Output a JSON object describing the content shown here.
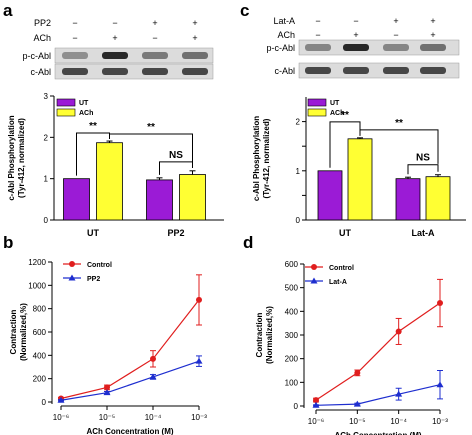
{
  "panel_labels": [
    "a",
    "b",
    "c",
    "d"
  ],
  "blots": [
    {
      "treatments": [
        {
          "label": "PP2",
          "signs": [
            "−",
            "−",
            "+",
            "+"
          ]
        },
        {
          "label": "ACh",
          "signs": [
            "−",
            "+",
            "−",
            "+"
          ]
        }
      ],
      "bands": [
        {
          "label": "p-c-Abl",
          "intensity": [
            0.45,
            0.95,
            0.55,
            0.6
          ]
        },
        {
          "label": "c-Abl",
          "intensity": [
            0.8,
            0.8,
            0.8,
            0.8
          ]
        }
      ]
    },
    {
      "treatments": [
        {
          "label": "Lat-A",
          "signs": [
            "−",
            "−",
            "+",
            "+"
          ]
        },
        {
          "label": "ACh",
          "signs": [
            "−",
            "+",
            "−",
            "+"
          ]
        }
      ],
      "bands": [
        {
          "label": "p-c-Abl",
          "intensity": [
            0.5,
            0.95,
            0.5,
            0.6
          ]
        },
        {
          "label": "c-Abl",
          "intensity": [
            0.8,
            0.8,
            0.8,
            0.8
          ]
        }
      ]
    }
  ],
  "colors": {
    "ut": "#9B1BD6",
    "ach": "#FFFF33",
    "control": "#E01E1E",
    "treated": "#1E2ECF"
  },
  "chart_data": [
    {
      "type": "bar",
      "ylabel": "c-Abl Phosphorylation\n(Tyr-412, normalized)",
      "ylim": [
        0,
        3
      ],
      "yticks": [
        0,
        1,
        2,
        3
      ],
      "categories": [
        "UT",
        "PP2"
      ],
      "series": [
        {
          "name": "UT",
          "values": [
            1.0,
            0.97
          ],
          "errors": [
            0,
            0.05
          ]
        },
        {
          "name": "ACh",
          "values": [
            1.87,
            1.1
          ],
          "errors": [
            0.04,
            0.09
          ]
        }
      ],
      "annotations": [
        {
          "text": "**",
          "type": "within",
          "group": 0
        },
        {
          "text": "**",
          "type": "between"
        },
        {
          "text": "NS",
          "type": "within",
          "group": 1
        }
      ],
      "legend": "top-left"
    },
    {
      "type": "line",
      "ylabel": "Contraction\n(Normalized,%)",
      "xlabel": "ACh Concentration (M)",
      "xscale": "log",
      "x": [
        1e-06,
        1e-05,
        0.0001,
        0.001
      ],
      "xtick_labels": [
        "10⁻⁶",
        "10⁻⁵",
        "10⁻⁴",
        "10⁻³"
      ],
      "ylim": [
        0,
        1200
      ],
      "yticks": [
        0,
        200,
        400,
        600,
        800,
        1000,
        1200
      ],
      "series": [
        {
          "name": "Control",
          "values": [
            30,
            125,
            370,
            875
          ],
          "errors": [
            10,
            20,
            70,
            215
          ],
          "marker": "circle"
        },
        {
          "name": "PP2",
          "values": [
            15,
            80,
            215,
            350
          ],
          "errors": [
            5,
            10,
            20,
            45
          ],
          "marker": "triangle"
        }
      ],
      "legend": "top-left"
    },
    {
      "type": "bar",
      "ylabel": "c-Abl Phosphorylation\n(Tyr-412, normalized)",
      "ylim": [
        0,
        2.5
      ],
      "yticks": [
        0,
        0.5,
        1,
        1.5,
        2
      ],
      "ytick_labels": [
        "0",
        "",
        "1",
        "",
        "2"
      ],
      "categories": [
        "UT",
        "Lat-A"
      ],
      "series": [
        {
          "name": "UT",
          "values": [
            1.0,
            0.84
          ],
          "errors": [
            0,
            0.03
          ]
        },
        {
          "name": "ACh",
          "values": [
            1.65,
            0.88
          ],
          "errors": [
            0.02,
            0.04
          ]
        }
      ],
      "annotations": [
        {
          "text": "**",
          "type": "within",
          "group": 0
        },
        {
          "text": "**",
          "type": "between"
        },
        {
          "text": "NS",
          "type": "within",
          "group": 1
        }
      ],
      "legend": "top-left"
    },
    {
      "type": "line",
      "ylabel": "Contraction\n(Normalized,%)",
      "xlabel": "ACh Concentration (M)",
      "xscale": "log",
      "x": [
        1e-06,
        1e-05,
        0.0001,
        0.001
      ],
      "xtick_labels": [
        "10⁻⁶",
        "10⁻⁵",
        "10⁻⁴",
        "10⁻³"
      ],
      "ylim": [
        0,
        600
      ],
      "yticks": [
        0,
        100,
        200,
        300,
        400,
        500,
        600
      ],
      "series": [
        {
          "name": "Control",
          "values": [
            25,
            140,
            315,
            435
          ],
          "errors": [
            8,
            12,
            55,
            100
          ],
          "marker": "circle"
        },
        {
          "name": "Lat-A",
          "values": [
            3,
            8,
            50,
            90
          ],
          "errors": [
            2,
            4,
            25,
            60
          ],
          "marker": "triangle"
        }
      ],
      "legend": "top-left"
    }
  ]
}
